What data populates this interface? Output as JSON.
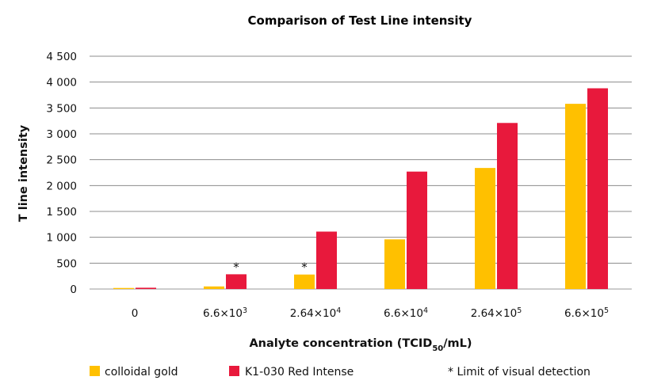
{
  "chart_data": {
    "type": "bar",
    "title": "Comparison of Test Line intensity",
    "xlabel": {
      "main": "Analyte concentration (TCID",
      "sub": "50",
      "rest": "/mL)"
    },
    "ylabel": "T line intensity",
    "ylim": [
      0,
      4500
    ],
    "yticks": [
      0,
      500,
      1000,
      1500,
      2000,
      2500,
      3000,
      3500,
      4000,
      4500
    ],
    "ytick_labels": [
      "0",
      "500",
      "1 000",
      "1 500",
      "2 000",
      "2 500",
      "3 000",
      "3 500",
      "4 000",
      "4 500"
    ],
    "grid": true,
    "categories": [
      {
        "base": "0",
        "exp": ""
      },
      {
        "base": "6.6×10",
        "exp": "3"
      },
      {
        "base": "2.64×10",
        "exp": "4"
      },
      {
        "base": "6.6×10",
        "exp": "4"
      },
      {
        "base": "2.64×10",
        "exp": "5"
      },
      {
        "base": "6.6×10",
        "exp": "5"
      }
    ],
    "series": [
      {
        "name": "colloidal gold",
        "color": "#FFC000",
        "values": [
          20,
          50,
          280,
          960,
          2340,
          3580
        ],
        "detection_limit_index": 2
      },
      {
        "name": "K1-030 Red Intense",
        "color": "#E8193C",
        "values": [
          25,
          285,
          1110,
          2270,
          3210,
          3880
        ],
        "detection_limit_index": 1
      }
    ],
    "annotation_marker": "*",
    "legend_note": "* Limit of visual detection",
    "legend_position": "bottom"
  }
}
